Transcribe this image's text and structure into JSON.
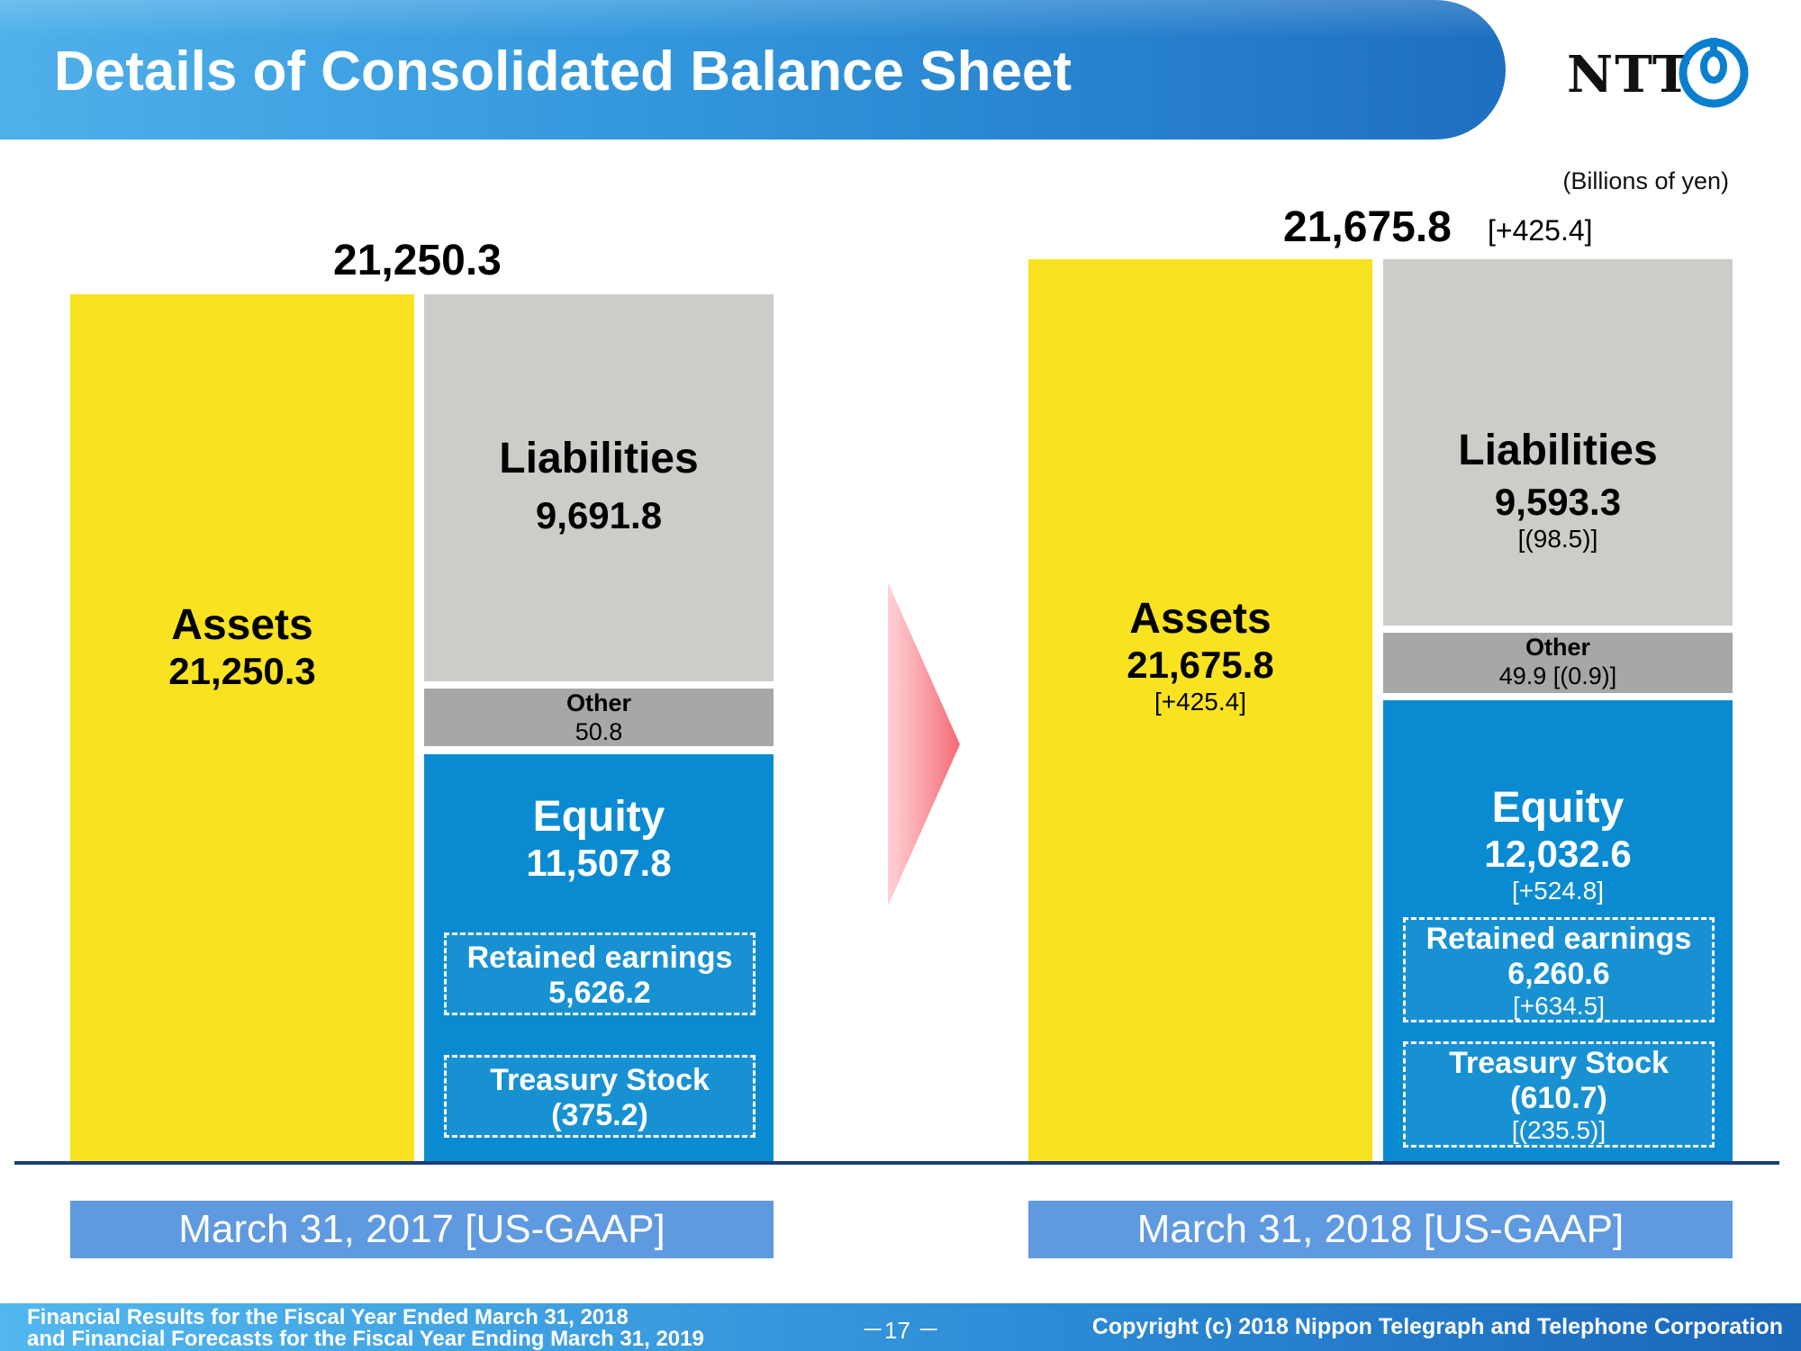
{
  "header": {
    "title": "Details of Consolidated Balance Sheet",
    "logo_text": "NTT"
  },
  "units": "(Billions of yen)",
  "colors": {
    "assets": "#f9e321",
    "liabilities": "#cccdc9",
    "other": "#a7a7a7",
    "equity": "#0a8bd1",
    "date_box": "#5f9ae0",
    "arrow": "#f36b75"
  },
  "period_2017": {
    "total": "21,250.3",
    "assets": {
      "label": "Assets",
      "value": "21,250.3"
    },
    "liabilities": {
      "label": "Liabilities",
      "value": "9,691.8"
    },
    "other": {
      "label": "Other",
      "value": "50.8"
    },
    "equity": {
      "label": "Equity",
      "value": "11,507.8"
    },
    "retained_earnings": {
      "label": "Retained earnings",
      "value": "5,626.2"
    },
    "treasury_stock": {
      "label": "Treasury Stock",
      "value": "(375.2)"
    },
    "date_label": "March 31, 2017 [US-GAAP]"
  },
  "period_2018": {
    "total": "21,675.8",
    "total_change": "[+425.4]",
    "assets": {
      "label": "Assets",
      "value": "21,675.8",
      "change": "[+425.4]"
    },
    "liabilities": {
      "label": "Liabilities",
      "value": "9,593.3",
      "change": "[(98.5)]"
    },
    "other": {
      "label": "Other",
      "value_with_change": "49.9 [(0.9)]"
    },
    "equity": {
      "label": "Equity",
      "value": "12,032.6",
      "change": "[+524.8]"
    },
    "retained_earnings": {
      "label": "Retained earnings",
      "value": "6,260.6",
      "change": "[+634.5]"
    },
    "treasury_stock": {
      "label": "Treasury Stock",
      "value": "(610.7)",
      "change": "[(235.5)]"
    },
    "date_label": "March 31, 2018 [US-GAAP]"
  },
  "footer": {
    "line1": "Financial Results for the Fiscal Year Ended March 31, 2018",
    "line2": "and Financial Forecasts for the Fiscal Year Ending March 31, 2019",
    "page": "－17 －",
    "copyright": "Copyright (c) 2018  Nippon Telegraph and Telephone Corporation"
  }
}
